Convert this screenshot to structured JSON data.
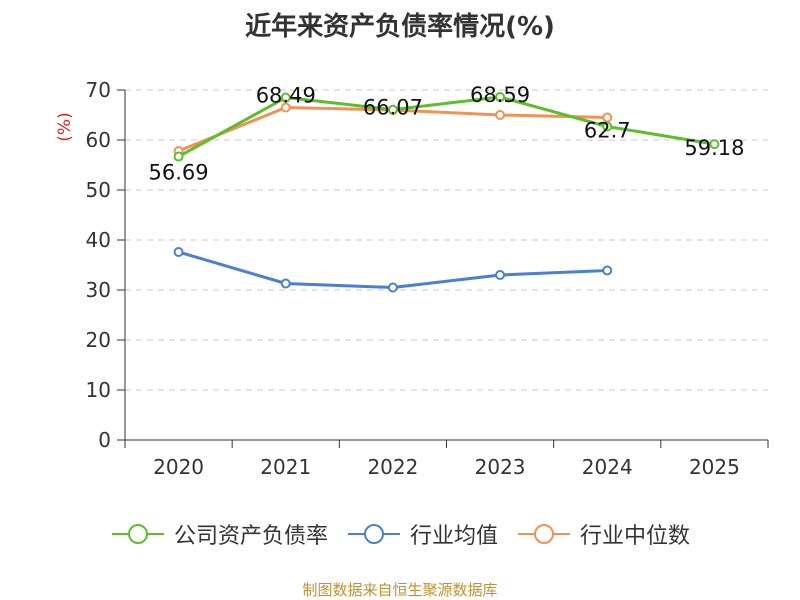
{
  "chart_data": {
    "type": "line",
    "title": "近年来资产负债率情况(%)",
    "ylabel": "(%)",
    "xlabel": "",
    "categories": [
      "2020",
      "2021",
      "2022",
      "2023",
      "2024",
      "2025"
    ],
    "ylim": [
      0,
      70
    ],
    "yticks": [
      0,
      10,
      20,
      30,
      40,
      50,
      60,
      70
    ],
    "grid": "horizontal-dashed",
    "legend_position": "bottom",
    "series": [
      {
        "name": "公司资产负债率",
        "color": "#5cbf2a",
        "values": [
          56.69,
          68.49,
          66.07,
          68.59,
          62.7,
          59.18
        ],
        "data_labels": [
          "56.69",
          "68.49",
          "66.07",
          "68.59",
          "62.7",
          "59.18"
        ]
      },
      {
        "name": "行业均值",
        "color": "#4a7fd6",
        "values": [
          37.6,
          31.3,
          30.5,
          33.0,
          33.9,
          null
        ]
      },
      {
        "name": "行业中位数",
        "color": "#f39056",
        "values": [
          57.8,
          66.5,
          66.0,
          65.0,
          64.5,
          null
        ]
      }
    ]
  },
  "source_note": "制图数据来自恒生聚源数据库"
}
